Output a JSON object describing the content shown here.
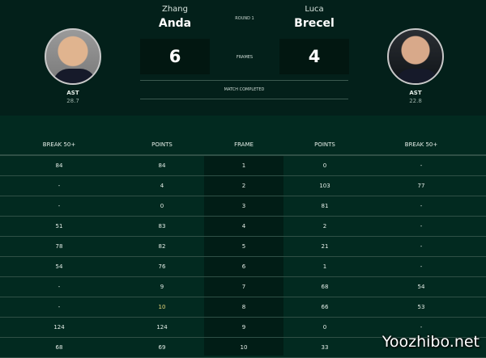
{
  "round": "ROUND 1",
  "frames_label": "FRAMES",
  "status": "MATCH COMPLETED",
  "player1": {
    "first": "Zhang",
    "last": "Anda",
    "score": "6",
    "nationality": "AST",
    "stat": "28.7"
  },
  "player2": {
    "first": "Luca",
    "last": "Brecel",
    "score": "4",
    "nationality": "AST",
    "stat": "22.8"
  },
  "columns": [
    "BREAK 50+",
    "POINTS",
    "FRAME",
    "POINTS",
    "BREAK 50+"
  ],
  "rows": [
    [
      "84",
      "84",
      "1",
      "0",
      "-"
    ],
    [
      "-",
      "4",
      "2",
      "103",
      "77"
    ],
    [
      "-",
      "0",
      "3",
      "81",
      "-"
    ],
    [
      "51",
      "83",
      "4",
      "2",
      "-"
    ],
    [
      "78",
      "82",
      "5",
      "21",
      "-"
    ],
    [
      "54",
      "76",
      "6",
      "1",
      "-"
    ],
    [
      "-",
      "9",
      "7",
      "68",
      "54"
    ],
    [
      "-",
      "10",
      "8",
      "66",
      "53"
    ],
    [
      "124",
      "124",
      "9",
      "0",
      "-"
    ],
    [
      "68",
      "69",
      "10",
      "33",
      ""
    ]
  ],
  "watermark": "Yoozhibo.net",
  "colors": {
    "background": "#022a20",
    "header": "#03201a",
    "frame_column": "#011d16"
  }
}
